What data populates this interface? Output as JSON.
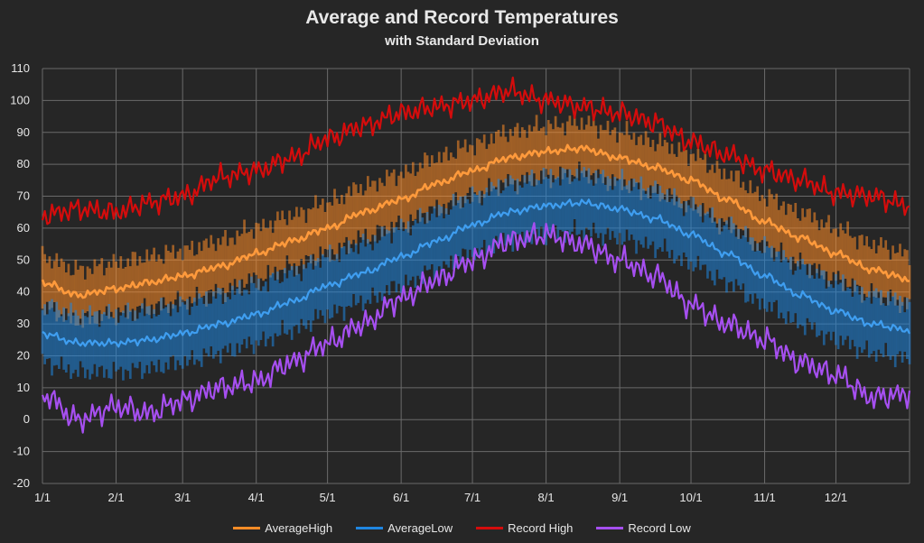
{
  "chart_data": {
    "type": "line",
    "title": "Average and Record Temperatures",
    "subtitle": "with Standard Deviation",
    "xlabel": "",
    "ylabel": "",
    "ylim": [
      -20,
      110
    ],
    "y_ticks": [
      "110",
      "100",
      "90",
      "80",
      "70",
      "60",
      "50",
      "40",
      "30",
      "20",
      "10",
      "0",
      "-10",
      "-20"
    ],
    "y_tick_values": [
      110,
      100,
      90,
      80,
      70,
      60,
      50,
      40,
      30,
      20,
      10,
      0,
      -10,
      -20
    ],
    "x_ticks": [
      "1/1",
      "2/1",
      "3/1",
      "4/1",
      "5/1",
      "6/1",
      "7/1",
      "8/1",
      "9/1",
      "10/1",
      "11/1",
      "12/1"
    ],
    "x_tick_days": [
      0,
      31,
      59,
      90,
      120,
      151,
      181,
      212,
      243,
      273,
      304,
      334
    ],
    "xlim_days": [
      0,
      365
    ],
    "grid": true,
    "legend_position": "bottom",
    "sample_days": [
      0,
      15,
      31,
      45,
      59,
      75,
      90,
      105,
      120,
      135,
      151,
      166,
      181,
      196,
      212,
      227,
      243,
      258,
      273,
      288,
      304,
      319,
      334,
      349,
      365
    ],
    "series": [
      {
        "name": "AverageHigh",
        "color": "#ff8c26",
        "std_dev_band": 8,
        "values": [
          43,
          39,
          41,
          43,
          45,
          48,
          52,
          56,
          60,
          65,
          69,
          74,
          78,
          82,
          84,
          85,
          82,
          79,
          75,
          69,
          62,
          57,
          52,
          47,
          44
        ]
      },
      {
        "name": "AverageLow",
        "color": "#1f86e0",
        "std_dev_band": 9,
        "values": [
          27,
          24,
          24,
          25,
          27,
          30,
          33,
          37,
          42,
          46,
          51,
          56,
          61,
          65,
          67,
          68,
          66,
          63,
          58,
          52,
          45,
          39,
          34,
          30,
          28
        ]
      },
      {
        "name": "Record High",
        "color": "#d40c0c",
        "values": [
          64,
          66,
          65,
          68,
          70,
          76,
          78,
          82,
          88,
          92,
          96,
          98,
          100,
          103,
          100,
          98,
          96,
          93,
          87,
          83,
          78,
          75,
          71,
          70,
          67
        ]
      },
      {
        "name": "Record Low",
        "color": "#a64ff0",
        "values": [
          8,
          0,
          4,
          2,
          6,
          10,
          12,
          18,
          24,
          30,
          38,
          44,
          50,
          56,
          58,
          55,
          50,
          45,
          36,
          30,
          25,
          18,
          14,
          7,
          8
        ]
      }
    ]
  }
}
